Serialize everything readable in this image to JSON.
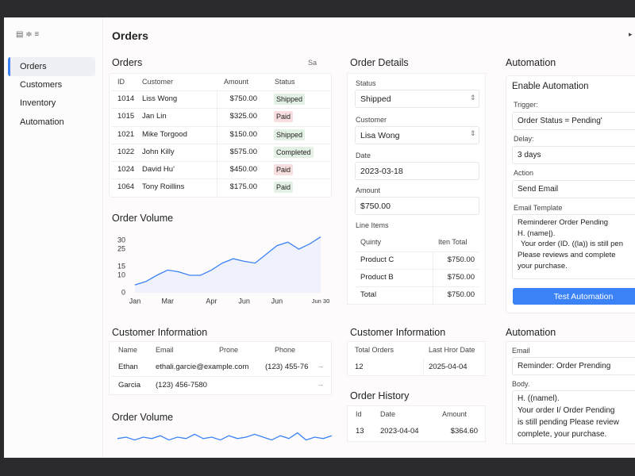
{
  "app": {
    "title": "Orders",
    "sidebar": [
      "Orders",
      "Customers",
      "Inventory",
      "Automation"
    ]
  },
  "orders": {
    "title": "Orders",
    "sort": "Sa",
    "columns": [
      "ID",
      "Customer",
      "Amount",
      "Status"
    ],
    "rows": [
      [
        "1014",
        "Liss Wong",
        "$750.00",
        "Shipped"
      ],
      [
        "1015",
        "Jan Lin",
        "$325.00",
        "Paid"
      ],
      [
        "1021",
        "Mike Torgood",
        "$150.00",
        "Shipped"
      ],
      [
        "1022",
        "John Killy",
        "$575.00",
        "Completed"
      ],
      [
        "1024",
        "David Hu'",
        "$450.00",
        "Paid"
      ],
      [
        "1064",
        "Tony Roillins",
        "$175.00",
        "Paid"
      ]
    ],
    "status_colors": [
      "#e3f1e4",
      "#f8dede",
      "#e3f1e4",
      "#e3f1e4",
      "#f8dede",
      "#e3f1e4"
    ]
  },
  "customer_info": {
    "title": "Customer Information",
    "columns": [
      "Name",
      "Email",
      "Prone",
      "Phone"
    ],
    "rows": [
      [
        "Ethan",
        "ethali.garcie@example.com",
        "(123) 455-76"
      ],
      [
        "Garcia",
        "(123) 456-7580"
      ]
    ]
  },
  "order_details": {
    "title": "Order Details",
    "status_label": "Status",
    "status": "Shipped",
    "customer_label": "Customer",
    "customer": "Lisa Wong",
    "date_label": "Date",
    "date": "2023-03-18",
    "amount_label": "Amount",
    "amount": "$750.00",
    "line_items_label": "Line Items",
    "line_columns": [
      "Quinty",
      "Iten Total"
    ],
    "line_rows": [
      [
        "Product C",
        "$750.00"
      ],
      [
        "Product B",
        "$750.00"
      ],
      [
        "Total",
        "$750.00"
      ]
    ]
  },
  "customer_summary": {
    "title": "Customer Information",
    "columns": [
      "Total Orders",
      "Last Hror Date"
    ],
    "row": [
      "12",
      "2025-04-04"
    ]
  },
  "order_history": {
    "title": "Order History",
    "columns": [
      "Id",
      "Date",
      "Amount"
    ],
    "row": [
      "13",
      "2023-04-04",
      "$364.60"
    ]
  },
  "automation": {
    "title": "Automation",
    "heading": "Enable Automation",
    "trigger_label": "Trigger:",
    "trigger": "Order Status = Pending'",
    "delay_label": "Delay:",
    "delay": "3 days",
    "action_label": "Action",
    "action": "Send Email",
    "template_label": "Email Template",
    "template": [
      "Reminderer Order  Pending",
      "H. (name|).",
      "Your  order  (ID.  ((la))  is still pen",
      "Please reviews and complete",
      "your purchase."
    ],
    "button": "Test Automation"
  },
  "automation_email": {
    "title": "Automation",
    "email_label": "Email",
    "email": "Reminder: Order  Prending",
    "body_label": "Body.",
    "body": [
      "H. ((namel).",
      "Your order I/ Order Pending",
      "is still pending  Please review",
      "complete, your purchase."
    ]
  },
  "chart_data": [
    {
      "type": "line",
      "title": "Order Volume",
      "color": "#3b82f6",
      "categories": [
        "Jan",
        null,
        null,
        "Mar",
        null,
        null,
        null,
        "Apr",
        null,
        null,
        "Jun",
        null,
        null,
        "Jun",
        null,
        null,
        null,
        "Jun 30"
      ],
      "values": [
        4.5,
        6.4,
        10,
        13,
        12,
        10,
        10,
        13,
        17,
        19.5,
        18,
        17,
        22,
        27,
        29,
        25,
        28,
        32
      ],
      "ylim": [
        0,
        32
      ],
      "yticks": [
        0,
        10,
        15,
        25,
        30
      ]
    },
    {
      "type": "line",
      "title": "Order Volume",
      "color": "#3b82f6",
      "values": [
        4,
        5,
        3,
        5,
        4,
        6,
        3,
        5,
        4,
        7,
        4,
        5,
        3,
        6,
        4,
        5,
        7,
        5,
        3,
        6,
        4,
        8,
        3,
        5,
        4,
        6
      ],
      "ylim": [
        0,
        10
      ]
    }
  ]
}
